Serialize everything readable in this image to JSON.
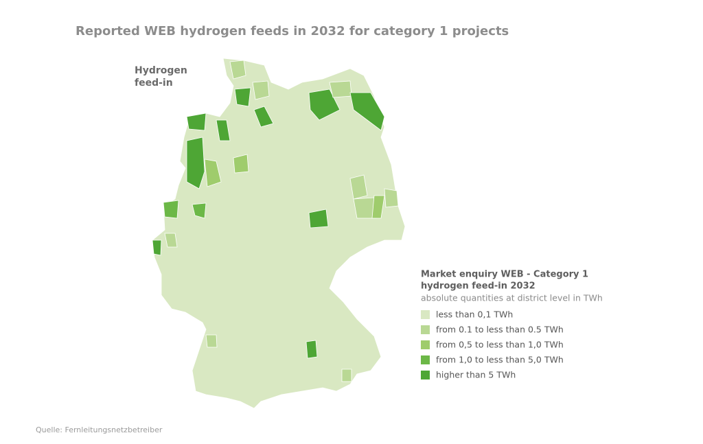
{
  "title": "Reported WEB hydrogen feeds in 2032 for category 1 projects",
  "map_label": [
    "Hydrogen",
    "feed-in"
  ],
  "legend": {
    "title": [
      "Market enquiry WEB - Category 1",
      "hydrogen feed-in 2032"
    ],
    "subtitle": "absolute quantities at district level in TWh",
    "items": [
      {
        "label": "less than 0,1 TWh",
        "color": "#d9e8c2"
      },
      {
        "label": "from 0.1 to less than 0.5 TWh",
        "color": "#b9d894"
      },
      {
        "label": "from 0,5 to less than 1,0 TWh",
        "color": "#9fcc6c"
      },
      {
        "label": "from 1,0 to less than 5,0 TWh",
        "color": "#6cb847"
      },
      {
        "label": "higher than 5 TWh",
        "color": "#4ea635"
      }
    ]
  },
  "source": "Quelle: Fernleitungsnetzbetreiber"
}
